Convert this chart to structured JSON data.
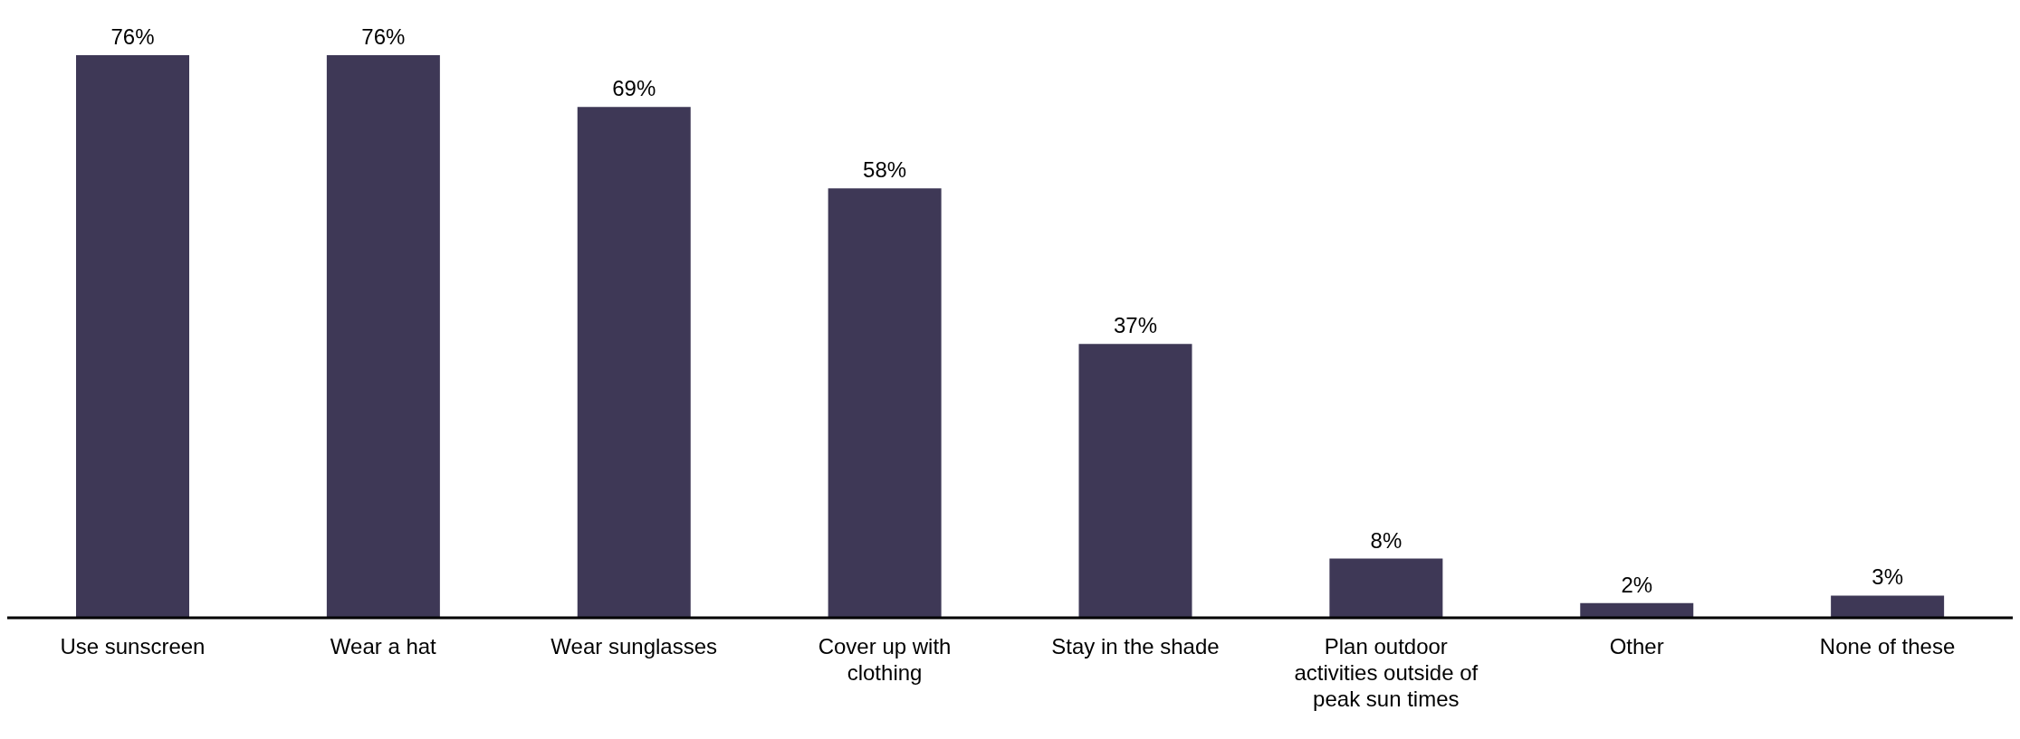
{
  "chart_data": {
    "type": "bar",
    "categories": [
      "Use sunscreen",
      "Wear a hat",
      "Wear sunglasses",
      "Cover up with clothing",
      "Stay in the shade",
      "Plan outdoor activities outside of peak sun times",
      "Other",
      "None of these"
    ],
    "values": [
      76,
      76,
      69,
      58,
      37,
      8,
      2,
      3
    ],
    "value_labels": [
      "76%",
      "76%",
      "69%",
      "58%",
      "37%",
      "8%",
      "2%",
      "3%"
    ],
    "color": "#3e3856",
    "grid": false,
    "legend": false
  }
}
